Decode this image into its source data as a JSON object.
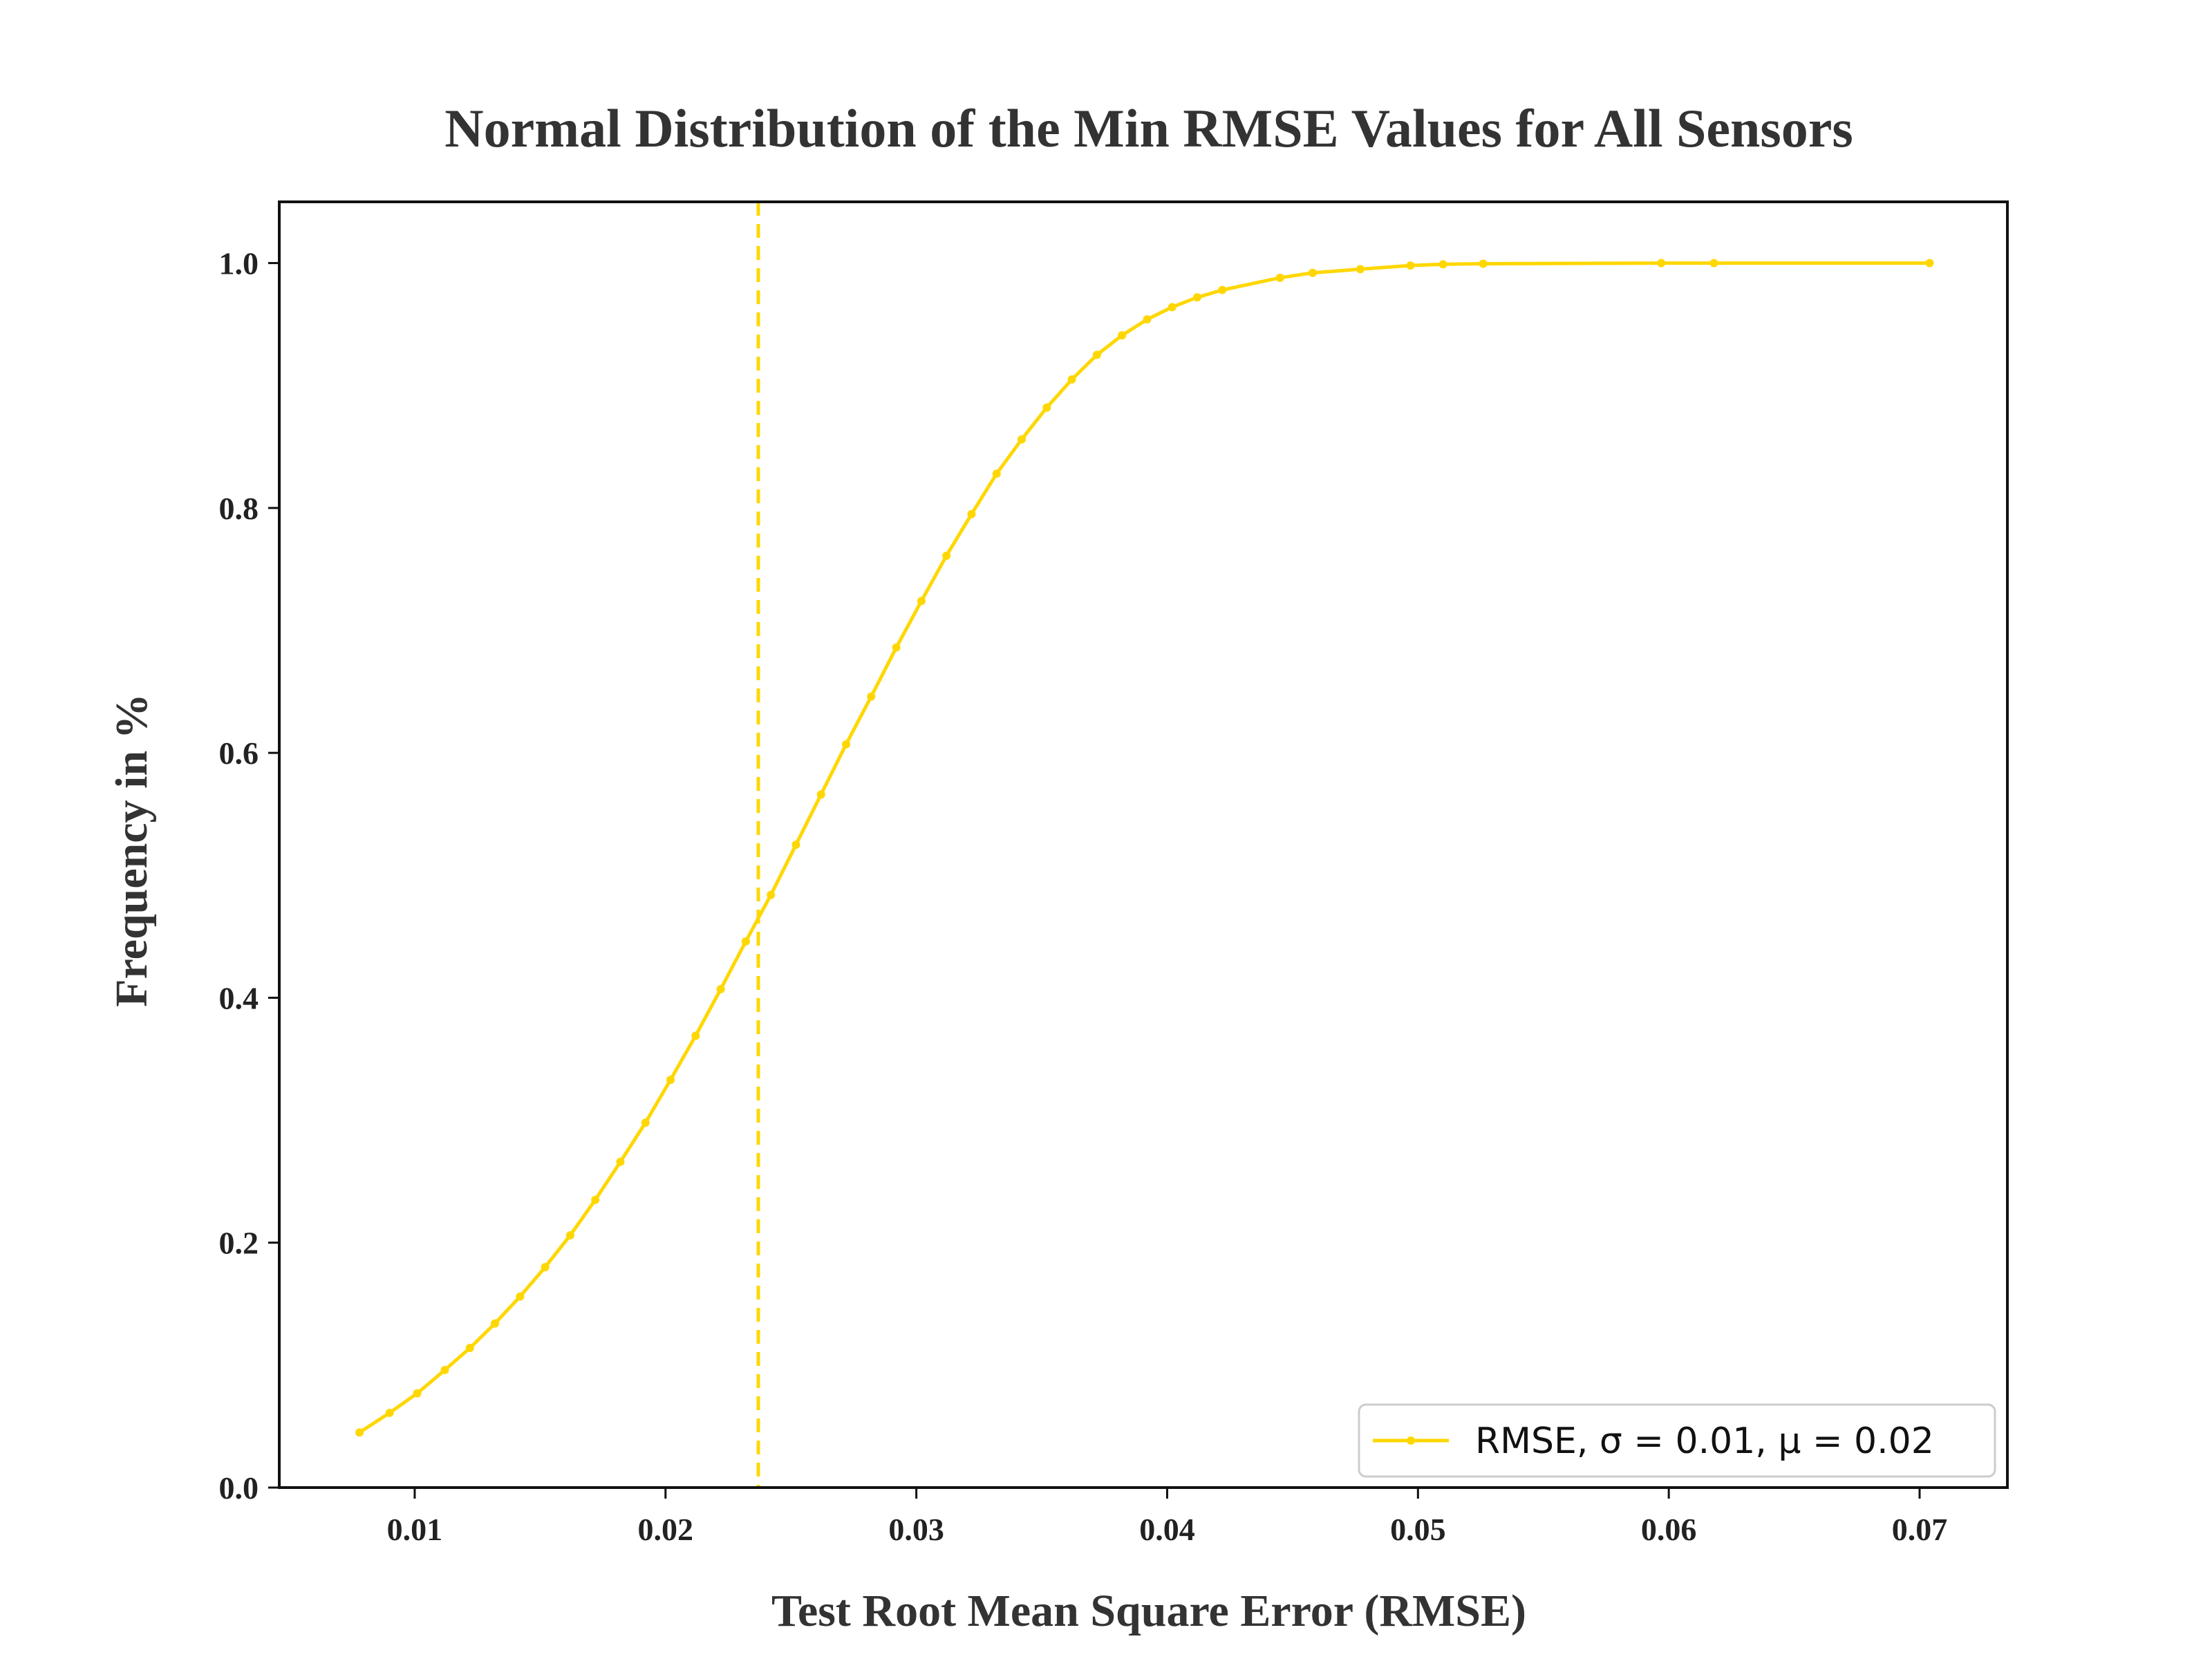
{
  "chart_data": {
    "type": "line",
    "title": "Normal Distribution of the Min RMSE Values for All Sensors",
    "xlabel": "Test Root Mean Square Error (RMSE)",
    "ylabel": "Frequency in %",
    "xlim": [
      0.0046,
      0.0735
    ],
    "ylim": [
      0.0,
      1.05
    ],
    "xticks": [
      0.01,
      0.02,
      0.03,
      0.04,
      0.05,
      0.06,
      0.07
    ],
    "xtick_labels": [
      "0.01",
      "0.02",
      "0.03",
      "0.04",
      "0.05",
      "0.06",
      "0.07"
    ],
    "yticks": [
      0.0,
      0.2,
      0.4,
      0.6,
      0.8,
      1.0
    ],
    "ytick_labels": [
      "0.0",
      "0.2",
      "0.4",
      "0.6",
      "0.8",
      "1.0"
    ],
    "grid": false,
    "legend_position": "bottom-right",
    "series": [
      {
        "name": "RMSE, σ = 0.01, μ = 0.02",
        "color": "#FFD700",
        "marker": "dot",
        "x": [
          0.0078,
          0.009,
          0.0101,
          0.0112,
          0.0122,
          0.0132,
          0.0142,
          0.0152,
          0.0162,
          0.0172,
          0.0182,
          0.0192,
          0.0202,
          0.0212,
          0.0222,
          0.0232,
          0.0242,
          0.0252,
          0.0262,
          0.0272,
          0.0282,
          0.0292,
          0.0302,
          0.0312,
          0.0322,
          0.0332,
          0.0342,
          0.0352,
          0.0362,
          0.0372,
          0.0382,
          0.0392,
          0.0402,
          0.0412,
          0.0422,
          0.0445,
          0.0458,
          0.0477,
          0.0497,
          0.051,
          0.0526,
          0.0597,
          0.0618,
          0.0704
        ],
        "y": [
          0.045,
          0.061,
          0.077,
          0.096,
          0.114,
          0.134,
          0.156,
          0.18,
          0.206,
          0.235,
          0.266,
          0.298,
          0.333,
          0.369,
          0.407,
          0.446,
          0.484,
          0.525,
          0.566,
          0.607,
          0.646,
          0.686,
          0.724,
          0.761,
          0.795,
          0.828,
          0.856,
          0.882,
          0.905,
          0.925,
          0.941,
          0.954,
          0.964,
          0.972,
          0.978,
          0.988,
          0.992,
          0.995,
          0.998,
          0.999,
          0.9995,
          1.0,
          1.0,
          1.0
        ]
      }
    ],
    "vline": {
      "x": 0.0237,
      "style": "dashed",
      "color": "#FFD700"
    }
  }
}
